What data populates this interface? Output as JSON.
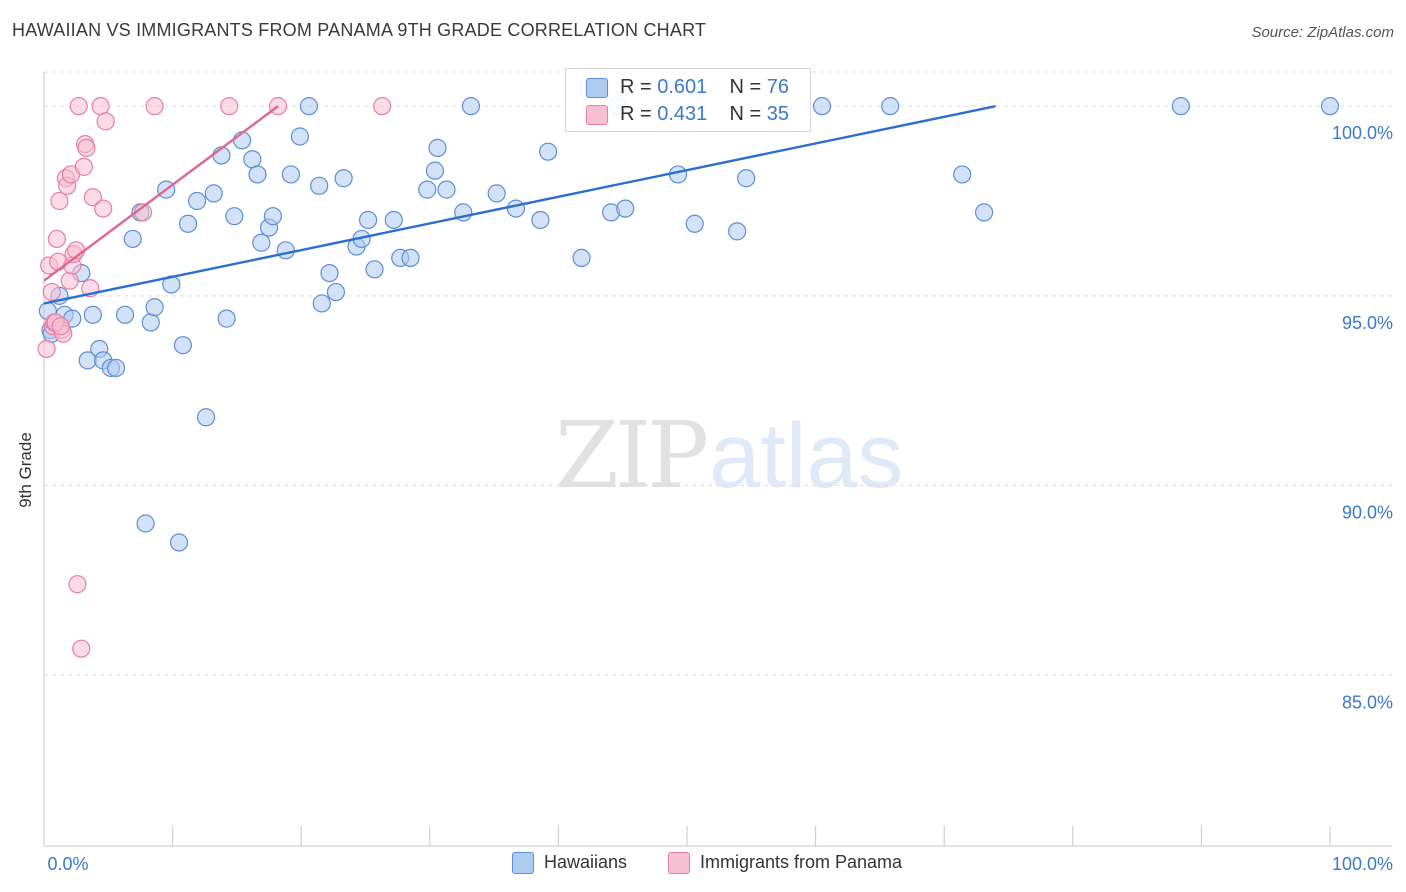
{
  "title": "HAWAIIAN VS IMMIGRANTS FROM PANAMA 9TH GRADE CORRELATION CHART",
  "source": "Source: ZipAtlas.com",
  "watermark": {
    "zip": "ZIP",
    "atlas": "atlas"
  },
  "legend_top": {
    "hawaiians": {
      "r_label": "R =",
      "r_value": "0.601",
      "n_label": "N =",
      "n_value": "76"
    },
    "panama": {
      "r_label": "R =",
      "r_value": "0.431",
      "n_label": "N =",
      "n_value": "35"
    }
  },
  "legend_bottom": {
    "hawaiians": "Hawaiians",
    "panama": "Immigrants from Panama"
  },
  "colors": {
    "blue_fill": "#aecbf0",
    "blue_stroke": "#5b8fd6",
    "blue_line": "#2a6fcf",
    "pink_fill": "#f7c0d2",
    "pink_stroke": "#e77fa2",
    "pink_line": "#e0668f",
    "tick_label": "#3b78d0",
    "grid": "#dedede"
  },
  "chart_data": {
    "type": "scatter",
    "title": "HAWAIIAN VS IMMIGRANTS FROM PANAMA 9TH GRADE CORRELATION CHART",
    "xlabel": "",
    "ylabel": "9th Grade",
    "xlim": [
      0,
      100
    ],
    "ylim": [
      80.5,
      100.9
    ],
    "x_tick_labels": [
      "0.0%",
      "100.0%"
    ],
    "y_ticks": [
      85,
      90,
      95,
      100
    ],
    "y_tick_labels": [
      "85.0%",
      "90.0%",
      "95.0%",
      "100.0%"
    ],
    "grid": true,
    "legend": "bottom-center",
    "series": [
      {
        "name": "Hawaiians",
        "color": "#aecbf0",
        "trend": [
          [
            0,
            94.8
          ],
          [
            74,
            100.0
          ]
        ],
        "points": [
          [
            0.3,
            94.6
          ],
          [
            0.5,
            94.1
          ],
          [
            0.6,
            94.0
          ],
          [
            1.2,
            95.0
          ],
          [
            1.6,
            94.5
          ],
          [
            2.2,
            94.4
          ],
          [
            2.9,
            95.6
          ],
          [
            3.4,
            93.3
          ],
          [
            3.8,
            94.5
          ],
          [
            4.3,
            93.6
          ],
          [
            4.6,
            93.3
          ],
          [
            5.2,
            93.1
          ],
          [
            5.6,
            93.1
          ],
          [
            6.3,
            94.5
          ],
          [
            6.9,
            96.5
          ],
          [
            7.5,
            97.2
          ],
          [
            8.3,
            94.3
          ],
          [
            8.6,
            94.7
          ],
          [
            9.5,
            97.8
          ],
          [
            9.9,
            95.3
          ],
          [
            10.8,
            93.7
          ],
          [
            11.2,
            96.9
          ],
          [
            11.9,
            97.5
          ],
          [
            12.6,
            91.8
          ],
          [
            13.2,
            97.7
          ],
          [
            13.8,
            98.7
          ],
          [
            14.2,
            94.4
          ],
          [
            14.8,
            97.1
          ],
          [
            15.4,
            99.1
          ],
          [
            16.2,
            98.6
          ],
          [
            16.6,
            98.2
          ],
          [
            16.9,
            96.4
          ],
          [
            17.5,
            96.8
          ],
          [
            17.8,
            97.1
          ],
          [
            18.8,
            96.2
          ],
          [
            19.2,
            98.2
          ],
          [
            19.9,
            99.2
          ],
          [
            20.6,
            100.0
          ],
          [
            21.4,
            97.9
          ],
          [
            21.6,
            94.8
          ],
          [
            22.2,
            95.6
          ],
          [
            22.7,
            95.1
          ],
          [
            23.3,
            98.1
          ],
          [
            24.3,
            96.3
          ],
          [
            24.7,
            96.5
          ],
          [
            25.2,
            97.0
          ],
          [
            25.7,
            95.7
          ],
          [
            27.2,
            97.0
          ],
          [
            27.7,
            96.0
          ],
          [
            28.5,
            96.0
          ],
          [
            29.8,
            97.8
          ],
          [
            30.4,
            98.3
          ],
          [
            30.6,
            98.9
          ],
          [
            31.3,
            97.8
          ],
          [
            32.6,
            97.2
          ],
          [
            33.2,
            100.0
          ],
          [
            35.2,
            97.7
          ],
          [
            36.7,
            97.3
          ],
          [
            38.6,
            97.0
          ],
          [
            39.2,
            98.8
          ],
          [
            41.8,
            96.0
          ],
          [
            44.1,
            97.2
          ],
          [
            44.6,
            100.0
          ],
          [
            45.2,
            97.3
          ],
          [
            49.3,
            98.2
          ],
          [
            50.6,
            96.9
          ],
          [
            53.9,
            96.7
          ],
          [
            54.6,
            98.1
          ],
          [
            60.5,
            100.0
          ],
          [
            65.8,
            100.0
          ],
          [
            71.4,
            98.2
          ],
          [
            73.1,
            97.2
          ],
          [
            88.4,
            100.0
          ],
          [
            100.0,
            100.0
          ],
          [
            7.9,
            89.0
          ],
          [
            10.5,
            88.5
          ]
        ]
      },
      {
        "name": "Immigrants from Panama",
        "color": "#f7c0d2",
        "trend": [
          [
            0,
            95.4
          ],
          [
            18.2,
            100.0
          ]
        ],
        "points": [
          [
            0.2,
            93.6
          ],
          [
            0.4,
            95.8
          ],
          [
            0.6,
            95.1
          ],
          [
            0.7,
            94.2
          ],
          [
            0.8,
            94.3
          ],
          [
            1.0,
            96.5
          ],
          [
            1.1,
            95.9
          ],
          [
            1.2,
            97.5
          ],
          [
            1.4,
            94.1
          ],
          [
            1.5,
            94.0
          ],
          [
            1.7,
            98.1
          ],
          [
            1.8,
            97.9
          ],
          [
            2.0,
            95.4
          ],
          [
            2.1,
            98.2
          ],
          [
            2.2,
            95.8
          ],
          [
            2.3,
            96.1
          ],
          [
            2.5,
            96.2
          ],
          [
            2.6,
            87.4
          ],
          [
            2.7,
            100.0
          ],
          [
            2.9,
            85.7
          ],
          [
            3.1,
            98.4
          ],
          [
            3.2,
            99.0
          ],
          [
            3.3,
            98.9
          ],
          [
            3.6,
            95.2
          ],
          [
            3.8,
            97.6
          ],
          [
            4.4,
            100.0
          ],
          [
            4.6,
            97.3
          ],
          [
            4.8,
            99.6
          ],
          [
            7.7,
            97.2
          ],
          [
            8.6,
            100.0
          ],
          [
            14.4,
            100.0
          ],
          [
            18.2,
            100.0
          ],
          [
            26.3,
            100.0
          ],
          [
            0.9,
            94.3
          ],
          [
            1.3,
            94.2
          ]
        ]
      }
    ]
  }
}
